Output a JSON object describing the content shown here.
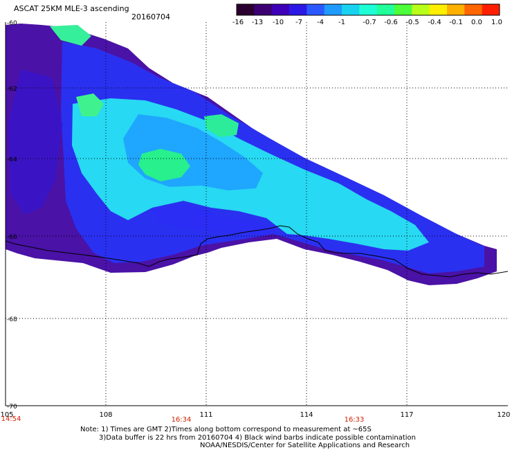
{
  "header": {
    "title": "ASCAT 25KM MLE-3 ascending",
    "date": "20160704"
  },
  "colorbar": {
    "labels": [
      "-16",
      "-13",
      "-10",
      "-7",
      "-4",
      "-1",
      "-0.7",
      "-0.6",
      "-0.5",
      "-0.4",
      "-0.1",
      "0.0",
      "1.0"
    ],
    "colors": [
      "#2a0030",
      "#3b0072",
      "#3d00b8",
      "#2c18e6",
      "#2a58ff",
      "#1f9aff",
      "#18d2f0",
      "#1fffd6",
      "#20ff9a",
      "#4cff3a",
      "#b8ff19",
      "#ffee00",
      "#ffb000",
      "#ff6500",
      "#ff1f00"
    ]
  },
  "axes": {
    "x_ticks": [
      "105",
      "108",
      "111",
      "114",
      "117",
      "120"
    ],
    "y_ticks": [
      "-60",
      "-62",
      "-64",
      "-66",
      "-68",
      "-70"
    ],
    "x_range": [
      105,
      120
    ],
    "y_range": [
      -60,
      -70
    ],
    "time_labels": [
      "14:54",
      "16:34",
      "16:33"
    ],
    "time_color": "#d02000"
  },
  "notes": {
    "line1": "Note: 1) Times are GMT 2)Times along bottom correspond to measurement at ~65S",
    "line2": "3)Data buffer is 22 hrs from 20160704 4) Black wind barbs indicate possible contamination",
    "line3": "NOAA/NESDIS/Center for Satellite Applications and Research"
  },
  "colors": {
    "grid": "#000000",
    "coastline": "#000000",
    "dark_purple": "#4a10a8",
    "blue": "#2b2ef0",
    "cyan": "#25d8f2",
    "green": "#22ee88"
  }
}
